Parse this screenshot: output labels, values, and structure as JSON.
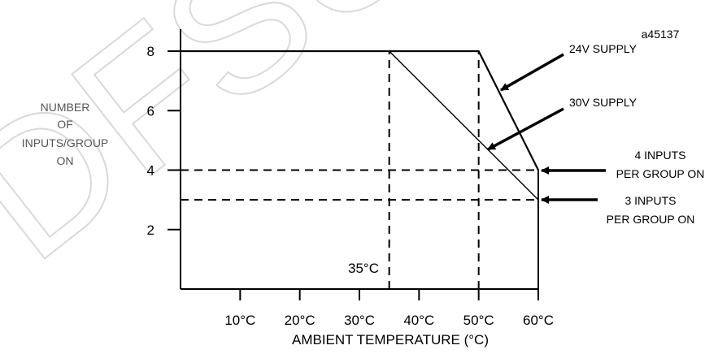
{
  "figure_id": "a45137",
  "watermark": "DFSU",
  "chart_data": {
    "type": "line",
    "xlabel": "AMBIENT TEMPERATURE (°C)",
    "ylabel_lines": [
      "NUMBER",
      "OF",
      "INPUTS/GROUP",
      "ON"
    ],
    "x_ticks": [
      10,
      20,
      30,
      40,
      50,
      60
    ],
    "x_tick_labels": [
      "10°C",
      "20°C",
      "30°C",
      "40°C",
      "50°C",
      "60°C"
    ],
    "y_ticks": [
      2,
      4,
      6,
      8
    ],
    "y_tick_labels": [
      "2",
      "4",
      "6",
      "8"
    ],
    "xlim": [
      0,
      60
    ],
    "ylim": [
      0,
      8
    ],
    "grid": false,
    "series": [
      {
        "name": "24V SUPPLY",
        "x": [
          0,
          50,
          60
        ],
        "y": [
          8,
          8,
          4
        ]
      },
      {
        "name": "30V SUPPLY",
        "x": [
          0,
          35,
          60
        ],
        "y": [
          8,
          8,
          3
        ]
      }
    ],
    "reference_lines": [
      {
        "axis": "x",
        "value": 35
      },
      {
        "axis": "x",
        "value": 50
      },
      {
        "axis": "y",
        "value": 4
      },
      {
        "axis": "y",
        "value": 3
      }
    ],
    "annotations": {
      "temp_35": "35°C",
      "supply_24v": "24V SUPPLY",
      "supply_30v": "30V SUPPLY",
      "inputs_4_line1": "4 INPUTS",
      "inputs_4_line2": "PER GROUP ON",
      "inputs_3_line1": "3 INPUTS",
      "inputs_3_line2": "PER GROUP ON"
    }
  }
}
